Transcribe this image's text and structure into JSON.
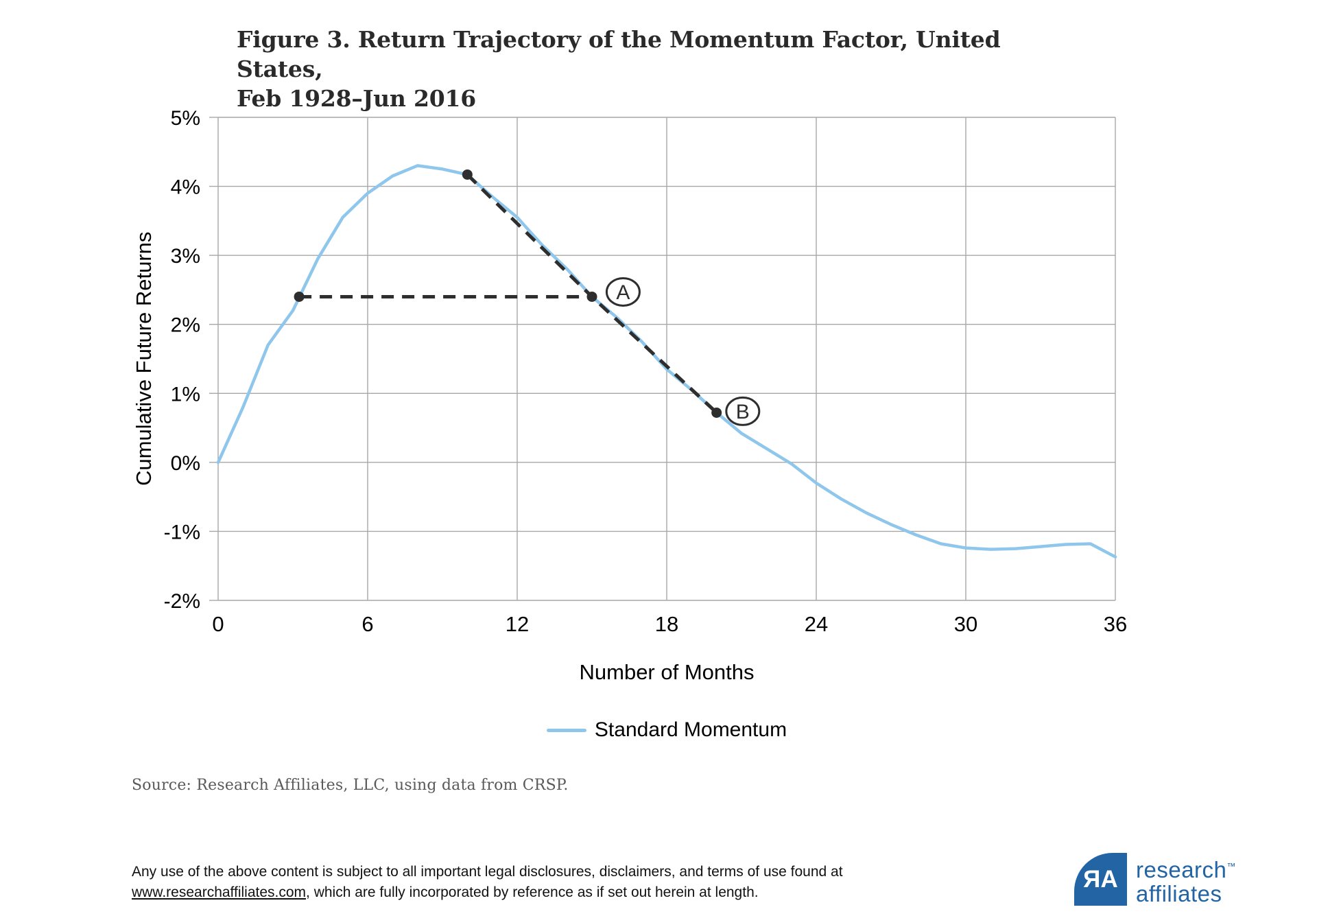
{
  "page": {
    "title_line1": "Figure 3. Return Trajectory of the Momentum Factor, United States,",
    "title_line2": "Feb 1928–Jun 2016",
    "source_text": "Source:  Research Affiliates, LLC, using data from CRSP.",
    "footer": {
      "line1": "Any use of the above content is subject to all important legal disclosures, disclaimers, and terms of use found at",
      "link_text": "www.researchaffiliates.com",
      "line2_rest": ", which are fully incorporated by reference as if set out herein at length."
    },
    "logo": {
      "monogram_r": "R",
      "monogram_a": "A",
      "word1": "research",
      "trademark": "™",
      "word2": "affiliates",
      "color": "#2264A4"
    }
  },
  "chart_data": {
    "type": "line",
    "title": "Figure 3. Return Trajectory of the Momentum Factor, United States, Feb 1928–Jun 2016",
    "xlabel": "Number of Months",
    "ylabel": "Cumulative Future Returns",
    "xlim": [
      0,
      36
    ],
    "ylim": [
      -2,
      5
    ],
    "grid": true,
    "legend_position": "bottom-center",
    "x_ticks": [
      0,
      6,
      12,
      18,
      24,
      30,
      36
    ],
    "y_ticks": [
      {
        "value": 5,
        "label": "5%"
      },
      {
        "value": 4,
        "label": "4%"
      },
      {
        "value": 3,
        "label": "3%"
      },
      {
        "value": 2,
        "label": "2%"
      },
      {
        "value": 1,
        "label": "1%"
      },
      {
        "value": 0,
        "label": "0%"
      },
      {
        "value": -1,
        "label": "-1%"
      },
      {
        "value": -2,
        "label": "-2%"
      }
    ],
    "x": [
      0,
      1,
      2,
      3,
      4,
      5,
      6,
      7,
      8,
      9,
      10,
      11,
      12,
      13,
      14,
      15,
      16,
      17,
      18,
      19,
      20,
      21,
      22,
      23,
      24,
      25,
      26,
      27,
      28,
      29,
      30,
      31,
      32,
      33,
      34,
      35,
      36
    ],
    "series": [
      {
        "name": "Standard Momentum",
        "color": "#8EC6EC",
        "values": [
          0.0,
          0.8,
          1.7,
          2.2,
          2.95,
          3.55,
          3.9,
          4.15,
          4.3,
          4.25,
          4.17,
          3.85,
          3.55,
          3.15,
          2.8,
          2.4,
          2.1,
          1.75,
          1.35,
          1.05,
          0.72,
          0.42,
          0.2,
          -0.02,
          -0.3,
          -0.53,
          -0.73,
          -0.9,
          -1.05,
          -1.18,
          -1.24,
          -1.26,
          -1.25,
          -1.22,
          -1.19,
          -1.18,
          -1.37
        ]
      }
    ],
    "annotations": {
      "marker_color": "#2E2E2E",
      "gridline_color": "#A7A7A7",
      "points": [
        {
          "month": 3.25,
          "value": 2.4
        },
        {
          "month": 10,
          "value": 4.17
        },
        {
          "month": 15,
          "value": 2.4
        },
        {
          "month": 20,
          "value": 0.72
        }
      ],
      "horizontal_dash": [
        {
          "month": 3.25,
          "value": 2.4
        },
        {
          "month": 15,
          "value": 2.4
        }
      ],
      "diagonal_dash": [
        {
          "month": 10,
          "value": 4.17
        },
        {
          "month": 15,
          "value": 2.4
        },
        {
          "month": 20,
          "value": 0.72
        }
      ],
      "circled_labels": [
        {
          "text": "A",
          "month": 16.25,
          "value": 2.47
        },
        {
          "text": "B",
          "month": 21.05,
          "value": 0.74
        }
      ]
    }
  }
}
